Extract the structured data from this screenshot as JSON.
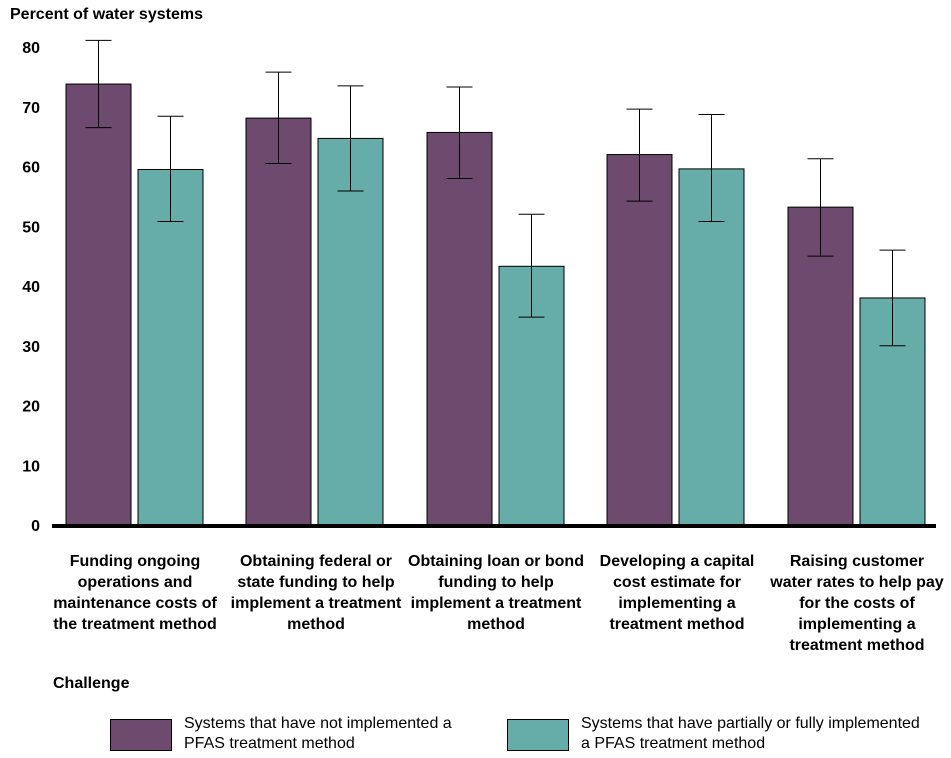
{
  "chart_data": {
    "type": "bar",
    "ylabel": "Percent of water systems",
    "xlabel": "Challenge",
    "ylim": [
      0,
      80
    ],
    "yticks": [
      "0",
      "10",
      "20",
      "30",
      "40",
      "50",
      "60",
      "70",
      "80"
    ],
    "categories": [
      "Funding ongoing operations and maintenance costs of the treatment method",
      "Obtaining federal or state funding to help implement a treatment method",
      "Obtaining loan or bond funding to help implement a treatment method",
      "Developing a capital cost estimate for implementing a treatment method",
      "Raising customer water rates to help pay for the costs of implementing a treatment method"
    ],
    "series": [
      {
        "name": "Systems that have not implemented a PFAS treatment method",
        "color": "#6e4a6e",
        "values": [
          73.8,
          68.1,
          65.7,
          62.0,
          53.2
        ],
        "error_low": [
          66.5,
          60.5,
          58.0,
          54.2,
          45.0
        ],
        "error_high": [
          81.1,
          75.8,
          73.3,
          69.6,
          61.3
        ]
      },
      {
        "name": "Systems that have partially or fully implemented a PFAS treatment method",
        "color": "#66ada9",
        "values": [
          59.5,
          64.7,
          43.3,
          59.6,
          38.0
        ],
        "error_low": [
          50.8,
          55.9,
          34.8,
          50.8,
          30.0
        ],
        "error_high": [
          68.4,
          73.5,
          52.0,
          68.7,
          46.0
        ]
      }
    ],
    "grid": false,
    "legend_position": "bottom"
  }
}
